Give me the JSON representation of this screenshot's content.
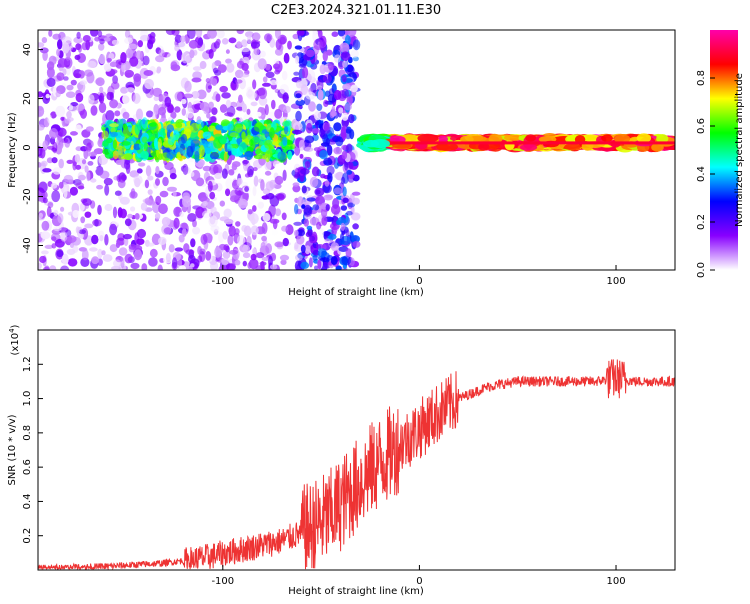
{
  "title": "C2E3.2024.321.01.11.E30",
  "chart_data": [
    {
      "type": "heatmap",
      "xlabel": "Height of straight line (km)",
      "ylabel": "Frequency (Hz)",
      "xlim": [
        -194,
        130
      ],
      "ylim": [
        -50,
        48
      ],
      "xticks": [
        -100,
        0,
        100
      ],
      "xtick_labels": [
        "-100",
        "0",
        "100"
      ],
      "yticks": [
        -40,
        -20,
        0,
        20,
        40
      ],
      "ytick_labels": [
        "-40",
        "-20",
        "0",
        "20",
        "40"
      ],
      "colorbar": {
        "label": "Normalized spectral amplitude",
        "range": [
          0,
          1
        ],
        "ticks": [
          0,
          0.2,
          0.4,
          0.6,
          0.8
        ],
        "tick_labels": [
          "0.0",
          "0.2",
          "0.4",
          "0.6",
          "0.8"
        ],
        "colors": [
          "#ffffff",
          "#8800ff",
          "#0000ff",
          "#00ffff",
          "#00ff00",
          "#ffff00",
          "#ff0000",
          "#ff00aa"
        ]
      },
      "regions": [
        {
          "name": "scatter",
          "x": [
            -194,
            -66
          ],
          "y": [
            -50,
            48
          ],
          "amplitude": 0.15
        },
        {
          "name": "band",
          "x": [
            -160,
            -64
          ],
          "y": [
            -6,
            12
          ],
          "amplitude": 0.5
        },
        {
          "name": "scatter-dense",
          "x": [
            -63,
            -32
          ],
          "y": [
            -50,
            48
          ],
          "amplitude": 0.3
        },
        {
          "name": "steady-line",
          "x": [
            -28,
            130
          ],
          "y": [
            -1,
            5
          ],
          "amplitude": 0.9
        }
      ]
    },
    {
      "type": "line",
      "xlabel": "Height of straight line (km)",
      "ylabel": "SNR (10 * v/v)",
      "multiplier_base": "(x10",
      "multiplier_exp": "4",
      "multiplier_end": ")",
      "xlim": [
        -194,
        130
      ],
      "ylim": [
        0,
        1.4
      ],
      "xticks": [
        -100,
        0,
        100
      ],
      "xtick_labels": [
        "-100",
        "0",
        "100"
      ],
      "yticks": [
        0.2,
        0.4,
        0.6,
        0.8,
        1.0,
        1.2
      ],
      "ytick_labels": [
        "0.2",
        "0.4",
        "0.6",
        "0.8",
        "1.0",
        "1.2"
      ],
      "color": "#ee3333",
      "series_points": [
        [
          -194,
          0.01
        ],
        [
          -160,
          0.02
        ],
        [
          -130,
          0.04
        ],
        [
          -110,
          0.07
        ],
        [
          -90,
          0.12
        ],
        [
          -70,
          0.17
        ],
        [
          -55,
          0.24
        ],
        [
          -45,
          0.32
        ],
        [
          -35,
          0.45
        ],
        [
          -25,
          0.58
        ],
        [
          -15,
          0.68
        ],
        [
          -8,
          0.75
        ],
        [
          0,
          0.82
        ],
        [
          10,
          0.92
        ],
        [
          20,
          1.0
        ],
        [
          35,
          1.07
        ],
        [
          50,
          1.1
        ],
        [
          70,
          1.1
        ],
        [
          90,
          1.1
        ],
        [
          100,
          1.12
        ],
        [
          110,
          1.1
        ],
        [
          130,
          1.1
        ]
      ]
    }
  ]
}
